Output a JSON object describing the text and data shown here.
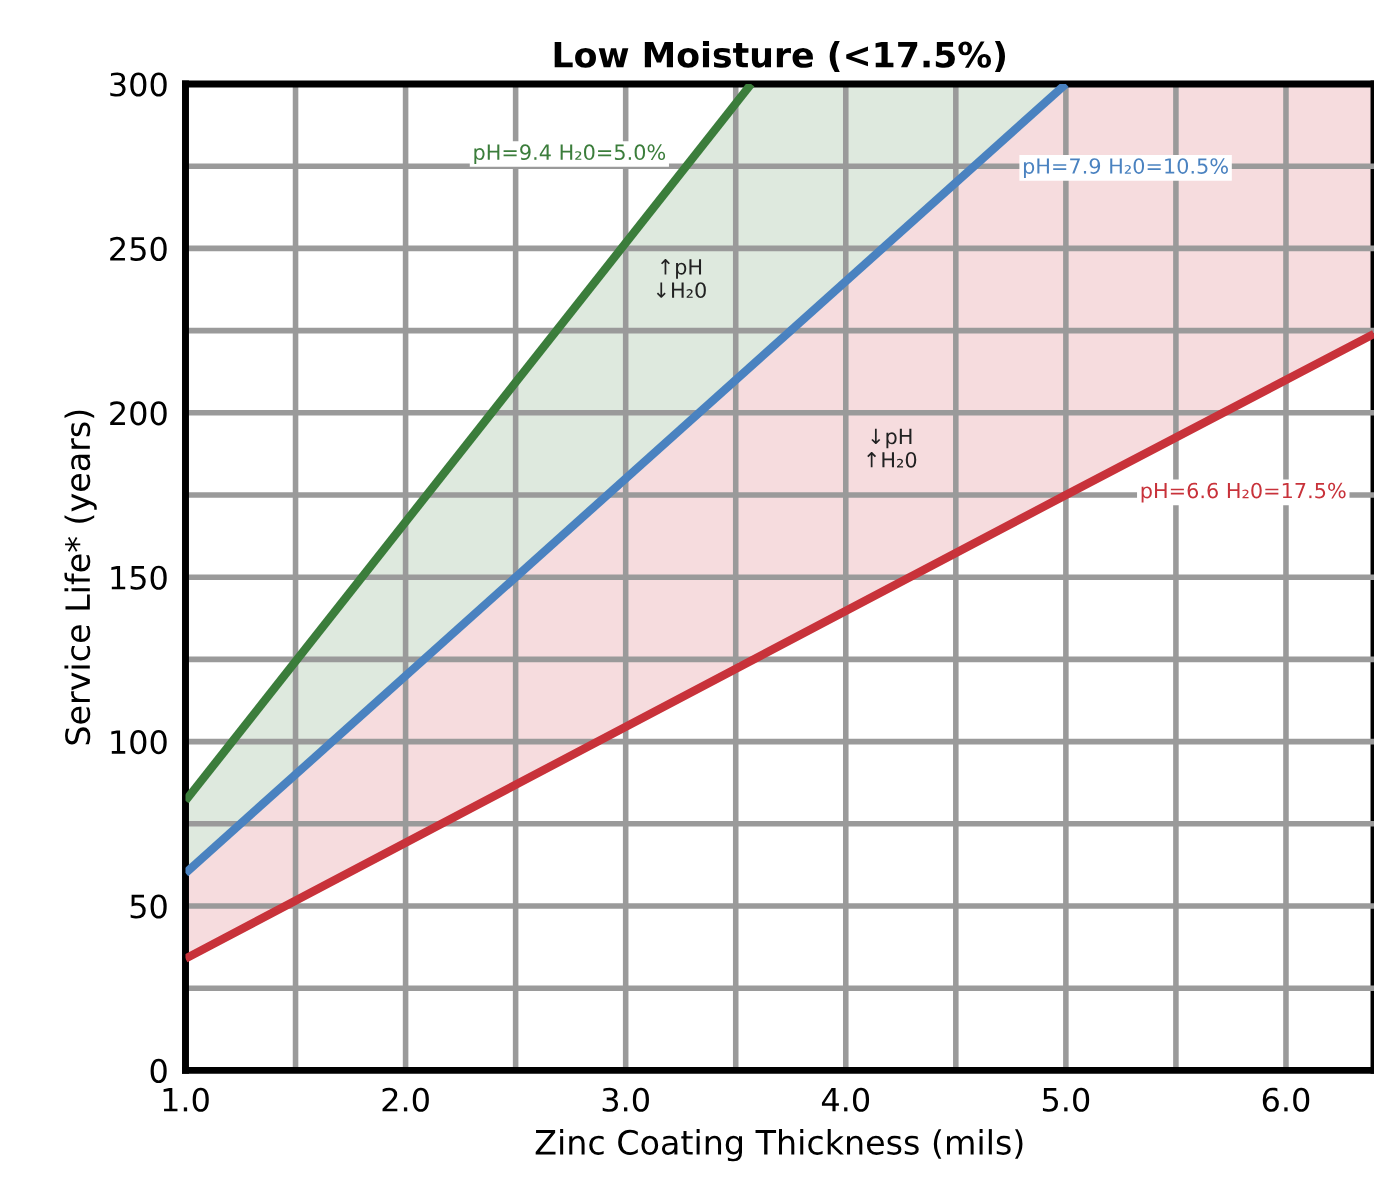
{
  "chart_data": {
    "type": "line",
    "title": "Low Moisture (<17.5%)",
    "xlabel": "Zinc Coating Thickness (mils)",
    "ylabel": "Service Life* (years)",
    "series": [
      {
        "color": "#3b7d3b",
        "x": [
          1,
          3.57,
          5
        ],
        "values": [
          82,
          300,
          null
        ],
        "lower": [
          60,
          214,
          300
        ],
        "upper": [
          82,
          300,
          300
        ]
      },
      {
        "color": "#4a82c0",
        "x": [
          1,
          5
        ],
        "values": [
          60,
          300
        ]
      },
      {
        "color": "#c8323a",
        "x": [
          1,
          5,
          6.4
        ],
        "values": [
          34,
          175,
          224
        ],
        "lower": [
          34,
          175,
          224
        ],
        "upper": [
          60,
          300,
          300
        ]
      }
    ],
    "annotations": [
      "pH=9.4 H₂0=5.0%",
      "pH=7.9 H₂0=10.5%",
      "pH=6.6 H₂0=17.5%",
      "↑pH\n↓H₂0",
      "↓pH\n↑H₂0"
    ],
    "xlim": [
      1,
      6.4
    ],
    "ylim": [
      0,
      300
    ],
    "xticks": [
      {
        "value": 1,
        "label": "1.0"
      },
      {
        "value": 1.5,
        "label": null
      },
      {
        "value": 2,
        "label": "2.0"
      },
      {
        "value": 2.5,
        "label": null
      },
      {
        "value": 3,
        "label": "3.0"
      },
      {
        "value": 3.5,
        "label": null
      },
      {
        "value": 4,
        "label": "4.0"
      },
      {
        "value": 4.5,
        "label": null
      },
      {
        "value": 5,
        "label": "5.0"
      },
      {
        "value": 5.5,
        "label": null
      },
      {
        "value": 6,
        "label": "6.0"
      }
    ],
    "yticks": [
      0,
      {
        "value": 25,
        "label": null
      },
      50,
      {
        "value": 75,
        "label": null
      },
      100,
      {
        "value": 125,
        "label": null
      },
      150,
      {
        "value": 175,
        "label": null
      },
      200,
      {
        "value": 225,
        "label": null
      },
      250,
      {
        "value": 275,
        "label": null
      },
      300
    ],
    "grid": true,
    "legend": false,
    "line_style": "solid",
    "marker": "none"
  }
}
